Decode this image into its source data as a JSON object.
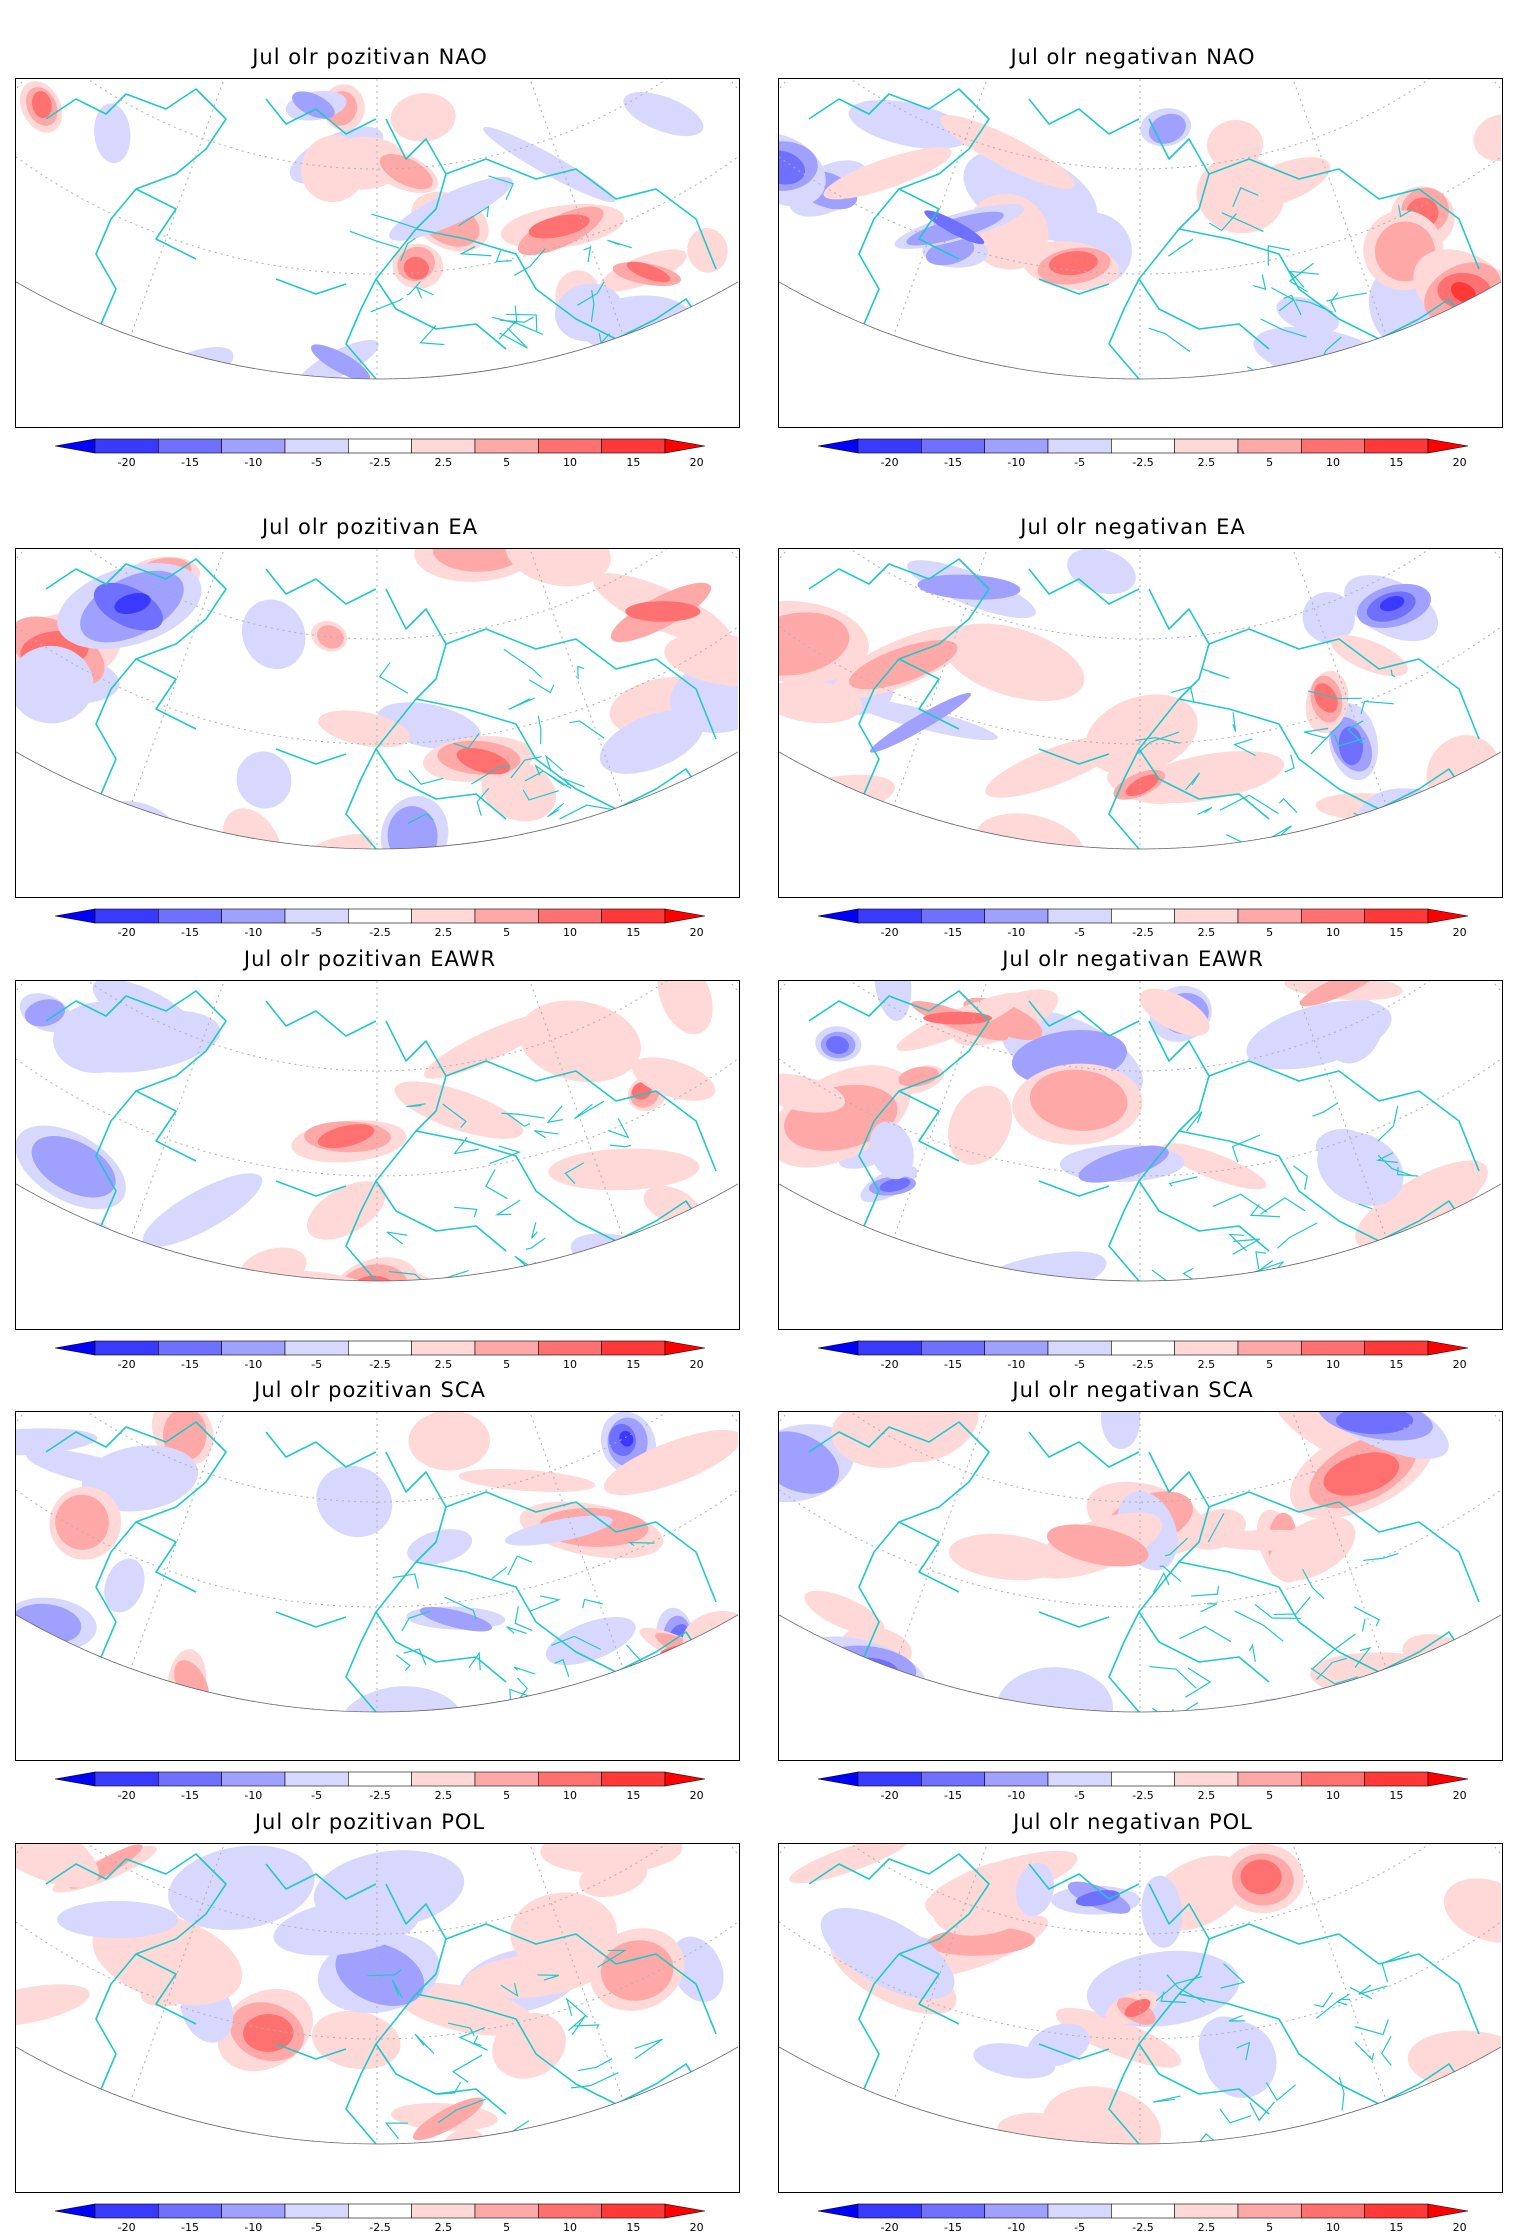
{
  "panels": [
    {
      "title": "Jul olr pozitivan NAO",
      "pattern": "NAO-positive"
    },
    {
      "title": "Jul olr negativan NAO",
      "pattern": "NAO-negative"
    },
    {
      "title": "Jul olr pozitivan EA",
      "pattern": "EA-positive"
    },
    {
      "title": "Jul olr negativan EA",
      "pattern": "EA-negative"
    },
    {
      "title": "Jul olr pozitivan EAWR",
      "pattern": "EAWR-positive"
    },
    {
      "title": "Jul olr negativan EAWR",
      "pattern": "EAWR-negative"
    },
    {
      "title": "Jul olr pozitivan SCA",
      "pattern": "SCA-positive"
    },
    {
      "title": "Jul olr negativan SCA",
      "pattern": "SCA-negative"
    },
    {
      "title": "Jul olr pozitivan POL",
      "pattern": "POL-positive"
    },
    {
      "title": "Jul olr negativan POL",
      "pattern": "POL-negative"
    }
  ],
  "colorbar": {
    "labels": [
      "-20",
      "-15",
      "-10",
      "-5",
      "-2.5",
      "2.5",
      "5",
      "10",
      "15",
      "20"
    ],
    "colors": [
      "#0000ff",
      "#3a3aff",
      "#7070ff",
      "#a0a0ff",
      "#d8d8ff",
      "#ffffff",
      "#ffd8d8",
      "#ffa8a8",
      "#ff7070",
      "#ff3838",
      "#ff0000"
    ]
  },
  "colors": {
    "coastline": "#20c8c8",
    "frame": "#000000",
    "graticule": "#b0b0b0"
  }
}
